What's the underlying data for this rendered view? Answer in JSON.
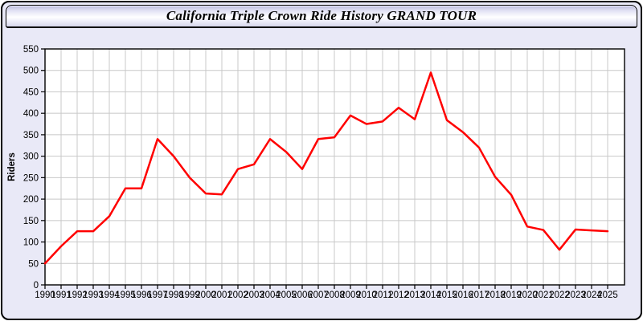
{
  "header": {
    "title": "California Triple Crown Ride History GRAND TOUR"
  },
  "chart_data": {
    "type": "line",
    "title": "California Triple Crown Ride History GRAND TOUR",
    "xlabel": "",
    "ylabel": "Riders",
    "x": [
      1990,
      1991,
      1992,
      1993,
      1994,
      1995,
      1996,
      1997,
      1998,
      1999,
      2000,
      2001,
      2002,
      2003,
      2004,
      2005,
      2006,
      2007,
      2008,
      2009,
      2010,
      2011,
      2012,
      2013,
      2014,
      2015,
      2016,
      2017,
      2018,
      2019,
      2020,
      2021,
      2022,
      2023,
      2024,
      2025
    ],
    "series": [
      {
        "name": "Riders",
        "values": [
          50,
          90,
          125,
          125,
          160,
          225,
          225,
          340,
          300,
          250,
          213,
          211,
          270,
          281,
          340,
          310,
          270,
          340,
          344,
          395,
          375,
          381,
          413,
          386,
          495,
          384,
          356,
          320,
          252,
          210,
          136,
          128,
          82,
          129,
          127,
          125
        ]
      }
    ],
    "ylim": [
      0,
      550
    ],
    "ytick_step": 50,
    "grid": true,
    "legend": "none",
    "line_color": "#ff0000",
    "grid_color": "#c8c8c8",
    "plot_bg": "#ffffff",
    "panel_bg": "#e9e9f7",
    "axis_color": "#000000",
    "tick_label_color": "#000000"
  }
}
